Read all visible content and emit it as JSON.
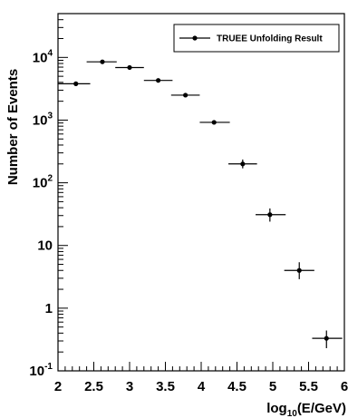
{
  "chart_data": {
    "type": "scatter",
    "xlabel": "log",
    "xlabel_sub": "10",
    "xlabel_tail": "(E/GeV)",
    "ylabel": "Number of Events",
    "xlim": [
      2,
      6
    ],
    "ylim": [
      0.1,
      50000
    ],
    "yscale": "log",
    "x_ticks": [
      2,
      2.5,
      3,
      3.5,
      4,
      4.5,
      5,
      5.5,
      6
    ],
    "x_tick_labels": [
      "2",
      "2.5",
      "3",
      "3.5",
      "4",
      "4.5",
      "5",
      "5.5",
      "6"
    ],
    "y_ticks": [
      0.1,
      1,
      10,
      100,
      1000,
      10000
    ],
    "y_tick_labels": [
      {
        "base": "10",
        "exp": "-1"
      },
      {
        "base": "1",
        "exp": ""
      },
      {
        "base": "10",
        "exp": ""
      },
      {
        "base": "10",
        "exp": "2"
      },
      {
        "base": "10",
        "exp": "3"
      },
      {
        "base": "10",
        "exp": "4"
      }
    ],
    "grid": false,
    "legend_position": "top-right",
    "series": [
      {
        "name": "TRUEE Unfolding Result",
        "color": "#000000",
        "points": [
          {
            "x": 2.25,
            "xlo": 2.0,
            "xhi": 2.45,
            "y": 3800,
            "ylo": 3700,
            "yhi": 3900
          },
          {
            "x": 2.62,
            "xlo": 2.4,
            "xhi": 2.82,
            "y": 8500,
            "ylo": 8350,
            "yhi": 8650
          },
          {
            "x": 3.0,
            "xlo": 2.8,
            "xhi": 3.2,
            "y": 6900,
            "ylo": 6750,
            "yhi": 7050
          },
          {
            "x": 3.4,
            "xlo": 3.2,
            "xhi": 3.6,
            "y": 4300,
            "ylo": 4200,
            "yhi": 4400
          },
          {
            "x": 3.78,
            "xlo": 3.58,
            "xhi": 3.98,
            "y": 2500,
            "ylo": 2430,
            "yhi": 2570
          },
          {
            "x": 4.18,
            "xlo": 3.98,
            "xhi": 4.4,
            "y": 920,
            "ylo": 880,
            "yhi": 960
          },
          {
            "x": 4.58,
            "xlo": 4.38,
            "xhi": 4.78,
            "y": 200,
            "ylo": 170,
            "yhi": 235
          },
          {
            "x": 4.96,
            "xlo": 4.76,
            "xhi": 5.18,
            "y": 31,
            "ylo": 24,
            "yhi": 39
          },
          {
            "x": 5.37,
            "xlo": 5.16,
            "xhi": 5.58,
            "y": 4.0,
            "ylo": 2.9,
            "yhi": 5.4
          },
          {
            "x": 5.75,
            "xlo": 5.55,
            "xhi": 5.97,
            "y": 0.33,
            "ylo": 0.23,
            "yhi": 0.44
          }
        ]
      }
    ]
  }
}
